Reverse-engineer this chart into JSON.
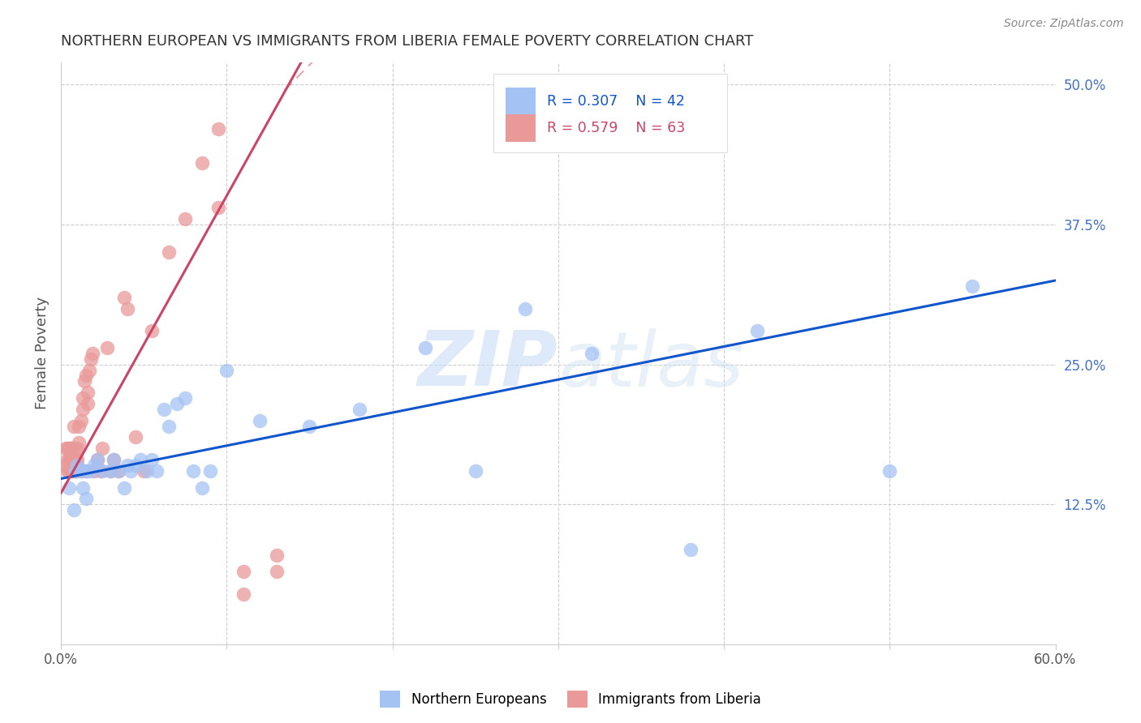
{
  "title": "NORTHERN EUROPEAN VS IMMIGRANTS FROM LIBERIA FEMALE POVERTY CORRELATION CHART",
  "source": "Source: ZipAtlas.com",
  "ylabel": "Female Poverty",
  "xlim": [
    0.0,
    0.6
  ],
  "ylim": [
    0.0,
    0.52
  ],
  "xtick_positions": [
    0.0,
    0.1,
    0.2,
    0.3,
    0.4,
    0.5,
    0.6
  ],
  "xticklabels": [
    "0.0%",
    "",
    "",
    "",
    "",
    "",
    "60.0%"
  ],
  "ytick_right_positions": [
    0.125,
    0.25,
    0.375,
    0.5
  ],
  "ytick_right_labels": [
    "12.5%",
    "25.0%",
    "37.5%",
    "50.0%"
  ],
  "blue_color": "#a4c2f4",
  "pink_color": "#ea9999",
  "blue_line_color": "#1155cc",
  "pink_line_color": "#cc4466",
  "legend_text_color": "#1155cc",
  "legend_pink_text_color": "#cc4466",
  "legend_R_blue": "R = 0.307",
  "legend_N_blue": "N = 42",
  "legend_R_pink": "R = 0.579",
  "legend_N_pink": "N = 63",
  "watermark": "ZIPatlas",
  "blue_scatter_x": [
    0.005,
    0.008,
    0.009,
    0.01,
    0.012,
    0.013,
    0.015,
    0.015,
    0.018,
    0.02,
    0.022,
    0.025,
    0.03,
    0.032,
    0.035,
    0.038,
    0.04,
    0.042,
    0.045,
    0.048,
    0.052,
    0.055,
    0.058,
    0.062,
    0.065,
    0.07,
    0.075,
    0.08,
    0.085,
    0.09,
    0.1,
    0.12,
    0.15,
    0.18,
    0.22,
    0.25,
    0.28,
    0.32,
    0.38,
    0.42,
    0.5,
    0.55
  ],
  "blue_scatter_y": [
    0.14,
    0.12,
    0.155,
    0.16,
    0.155,
    0.14,
    0.13,
    0.155,
    0.155,
    0.16,
    0.165,
    0.155,
    0.155,
    0.165,
    0.155,
    0.14,
    0.16,
    0.155,
    0.16,
    0.165,
    0.155,
    0.165,
    0.155,
    0.21,
    0.195,
    0.215,
    0.22,
    0.155,
    0.14,
    0.155,
    0.245,
    0.2,
    0.195,
    0.21,
    0.265,
    0.155,
    0.3,
    0.26,
    0.085,
    0.28,
    0.155,
    0.32
  ],
  "pink_scatter_x": [
    0.003,
    0.003,
    0.004,
    0.004,
    0.004,
    0.005,
    0.005,
    0.005,
    0.005,
    0.006,
    0.006,
    0.006,
    0.007,
    0.007,
    0.007,
    0.007,
    0.008,
    0.008,
    0.008,
    0.008,
    0.009,
    0.009,
    0.009,
    0.01,
    0.01,
    0.01,
    0.01,
    0.011,
    0.011,
    0.012,
    0.012,
    0.013,
    0.013,
    0.014,
    0.015,
    0.015,
    0.016,
    0.016,
    0.017,
    0.018,
    0.019,
    0.02,
    0.022,
    0.024,
    0.025,
    0.028,
    0.03,
    0.032,
    0.035,
    0.038,
    0.04,
    0.045,
    0.05,
    0.055,
    0.065,
    0.075,
    0.085,
    0.095,
    0.11,
    0.13,
    0.095,
    0.11,
    0.13
  ],
  "pink_scatter_y": [
    0.16,
    0.175,
    0.155,
    0.165,
    0.175,
    0.155,
    0.16,
    0.165,
    0.175,
    0.155,
    0.165,
    0.175,
    0.155,
    0.16,
    0.165,
    0.175,
    0.155,
    0.16,
    0.165,
    0.195,
    0.155,
    0.165,
    0.175,
    0.155,
    0.16,
    0.165,
    0.175,
    0.18,
    0.195,
    0.155,
    0.2,
    0.21,
    0.22,
    0.235,
    0.155,
    0.24,
    0.215,
    0.225,
    0.245,
    0.255,
    0.26,
    0.155,
    0.165,
    0.155,
    0.175,
    0.265,
    0.155,
    0.165,
    0.155,
    0.31,
    0.3,
    0.185,
    0.155,
    0.28,
    0.35,
    0.38,
    0.43,
    0.39,
    0.065,
    0.08,
    0.46,
    0.045,
    0.065
  ],
  "blue_line_x0": 0.0,
  "blue_line_y0": 0.148,
  "blue_line_x1": 0.6,
  "blue_line_y1": 0.325,
  "pink_line_x0": 0.0,
  "pink_line_y0": 0.135,
  "pink_line_x1": 0.145,
  "pink_line_y1": 0.52,
  "grid_color": "#cccccc",
  "background_color": "#ffffff",
  "title_color": "#333333",
  "axis_label_color": "#555555",
  "right_tick_color": "#4472c4"
}
